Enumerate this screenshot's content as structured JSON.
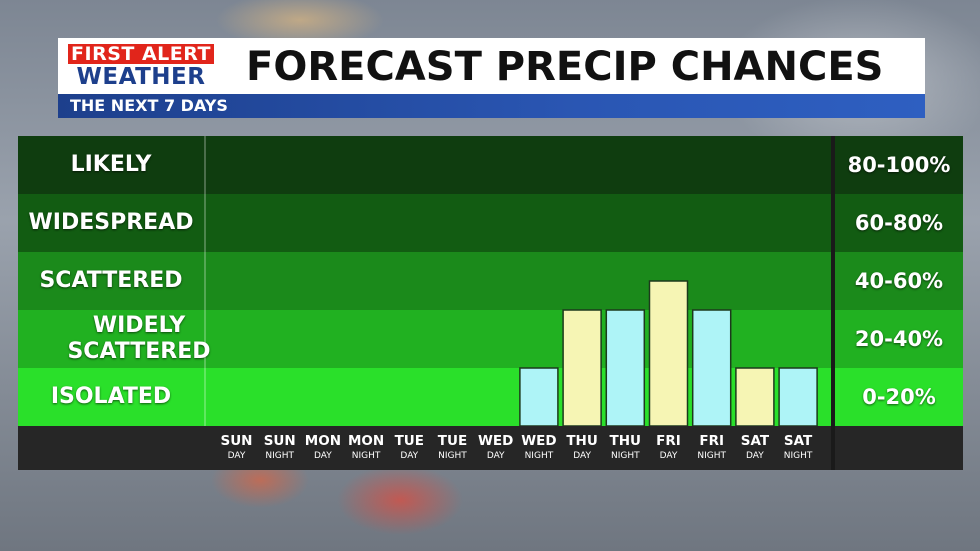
{
  "header": {
    "logo_line1": "FIRST ALERT",
    "logo_line2": "WEATHER",
    "title": "FORECAST PRECIP CHANCES",
    "subtitle": "THE NEXT 7 DAYS"
  },
  "colors": {
    "day_bar": "#f6f5b4",
    "night_bar": "#aef4f7",
    "band_likely": "#0f3d0f",
    "band_widespread": "#125c12",
    "band_scattered": "#1b8a1b",
    "band_widely_scattered": "#21b121",
    "band_isolated": "#2ae02a"
  },
  "chart_data": {
    "type": "bar",
    "title": "FORECAST PRECIP CHANCES",
    "subtitle": "THE NEXT 7 DAYS",
    "categories": [
      {
        "day": "SUN",
        "part": "DAY"
      },
      {
        "day": "SUN",
        "part": "NIGHT"
      },
      {
        "day": "MON",
        "part": "DAY"
      },
      {
        "day": "MON",
        "part": "NIGHT"
      },
      {
        "day": "TUE",
        "part": "DAY"
      },
      {
        "day": "TUE",
        "part": "NIGHT"
      },
      {
        "day": "WED",
        "part": "DAY"
      },
      {
        "day": "WED",
        "part": "NIGHT"
      },
      {
        "day": "THU",
        "part": "DAY"
      },
      {
        "day": "THU",
        "part": "NIGHT"
      },
      {
        "day": "FRI",
        "part": "DAY"
      },
      {
        "day": "FRI",
        "part": "NIGHT"
      },
      {
        "day": "SAT",
        "part": "DAY"
      },
      {
        "day": "SAT",
        "part": "NIGHT"
      }
    ],
    "values": [
      0,
      0,
      0,
      0,
      0,
      0,
      0,
      20,
      40,
      40,
      50,
      40,
      20,
      20
    ],
    "ylim": [
      0,
      100
    ],
    "bands": [
      {
        "label": "LIKELY",
        "range": "80-100%",
        "from": 80,
        "to": 100
      },
      {
        "label": "WIDESPREAD",
        "range": "60-80%",
        "from": 60,
        "to": 80
      },
      {
        "label": "SCATTERED",
        "range": "40-60%",
        "from": 40,
        "to": 60
      },
      {
        "label": "WIDELY SCATTERED",
        "range": "20-40%",
        "from": 20,
        "to": 40
      },
      {
        "label": "ISOLATED",
        "range": "0-20%",
        "from": 0,
        "to": 20
      }
    ],
    "grid": false,
    "legend": "none"
  }
}
